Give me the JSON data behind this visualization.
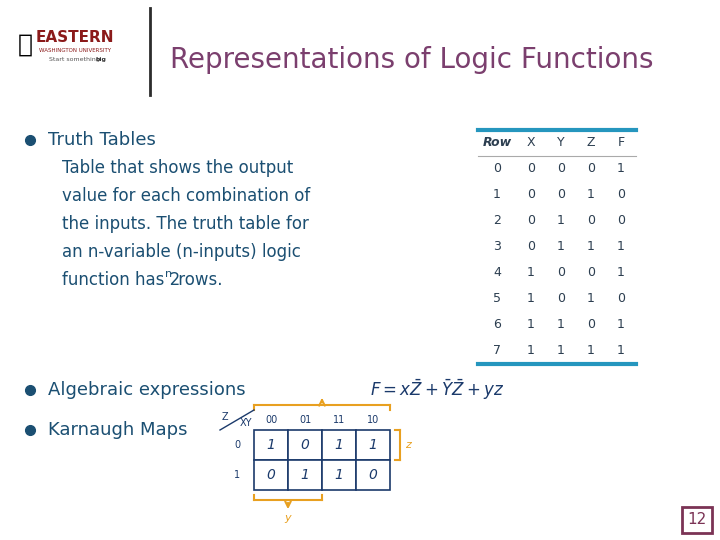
{
  "title": "Representations of Logic Functions",
  "title_color": "#7B3F6E",
  "title_fontsize": 20,
  "bg_color": "#FFFFFF",
  "header_bar_color": "#2596BE",
  "bullet_color": "#1B4F72",
  "truth_table_headers": [
    "Row",
    "X",
    "Y",
    "Z",
    "F"
  ],
  "truth_table_data": [
    [
      0,
      0,
      0,
      0,
      1
    ],
    [
      1,
      0,
      0,
      1,
      0
    ],
    [
      2,
      0,
      1,
      0,
      0
    ],
    [
      3,
      0,
      1,
      1,
      1
    ],
    [
      4,
      1,
      0,
      0,
      1
    ],
    [
      5,
      1,
      0,
      1,
      0
    ],
    [
      6,
      1,
      1,
      0,
      1
    ],
    [
      7,
      1,
      1,
      1,
      1
    ]
  ],
  "slide_number": "12",
  "slide_number_color": "#7B3355",
  "logo_color": "#8B1A1A",
  "orange_color": "#E8A020",
  "dark_blue": "#1B3A6B",
  "kmap_data": [
    [
      1,
      0,
      1,
      1
    ],
    [
      0,
      1,
      1,
      0
    ]
  ],
  "kmap_col_headers": [
    "00",
    "01",
    "11",
    "10"
  ],
  "kmap_row_headers": [
    "0",
    "1"
  ]
}
